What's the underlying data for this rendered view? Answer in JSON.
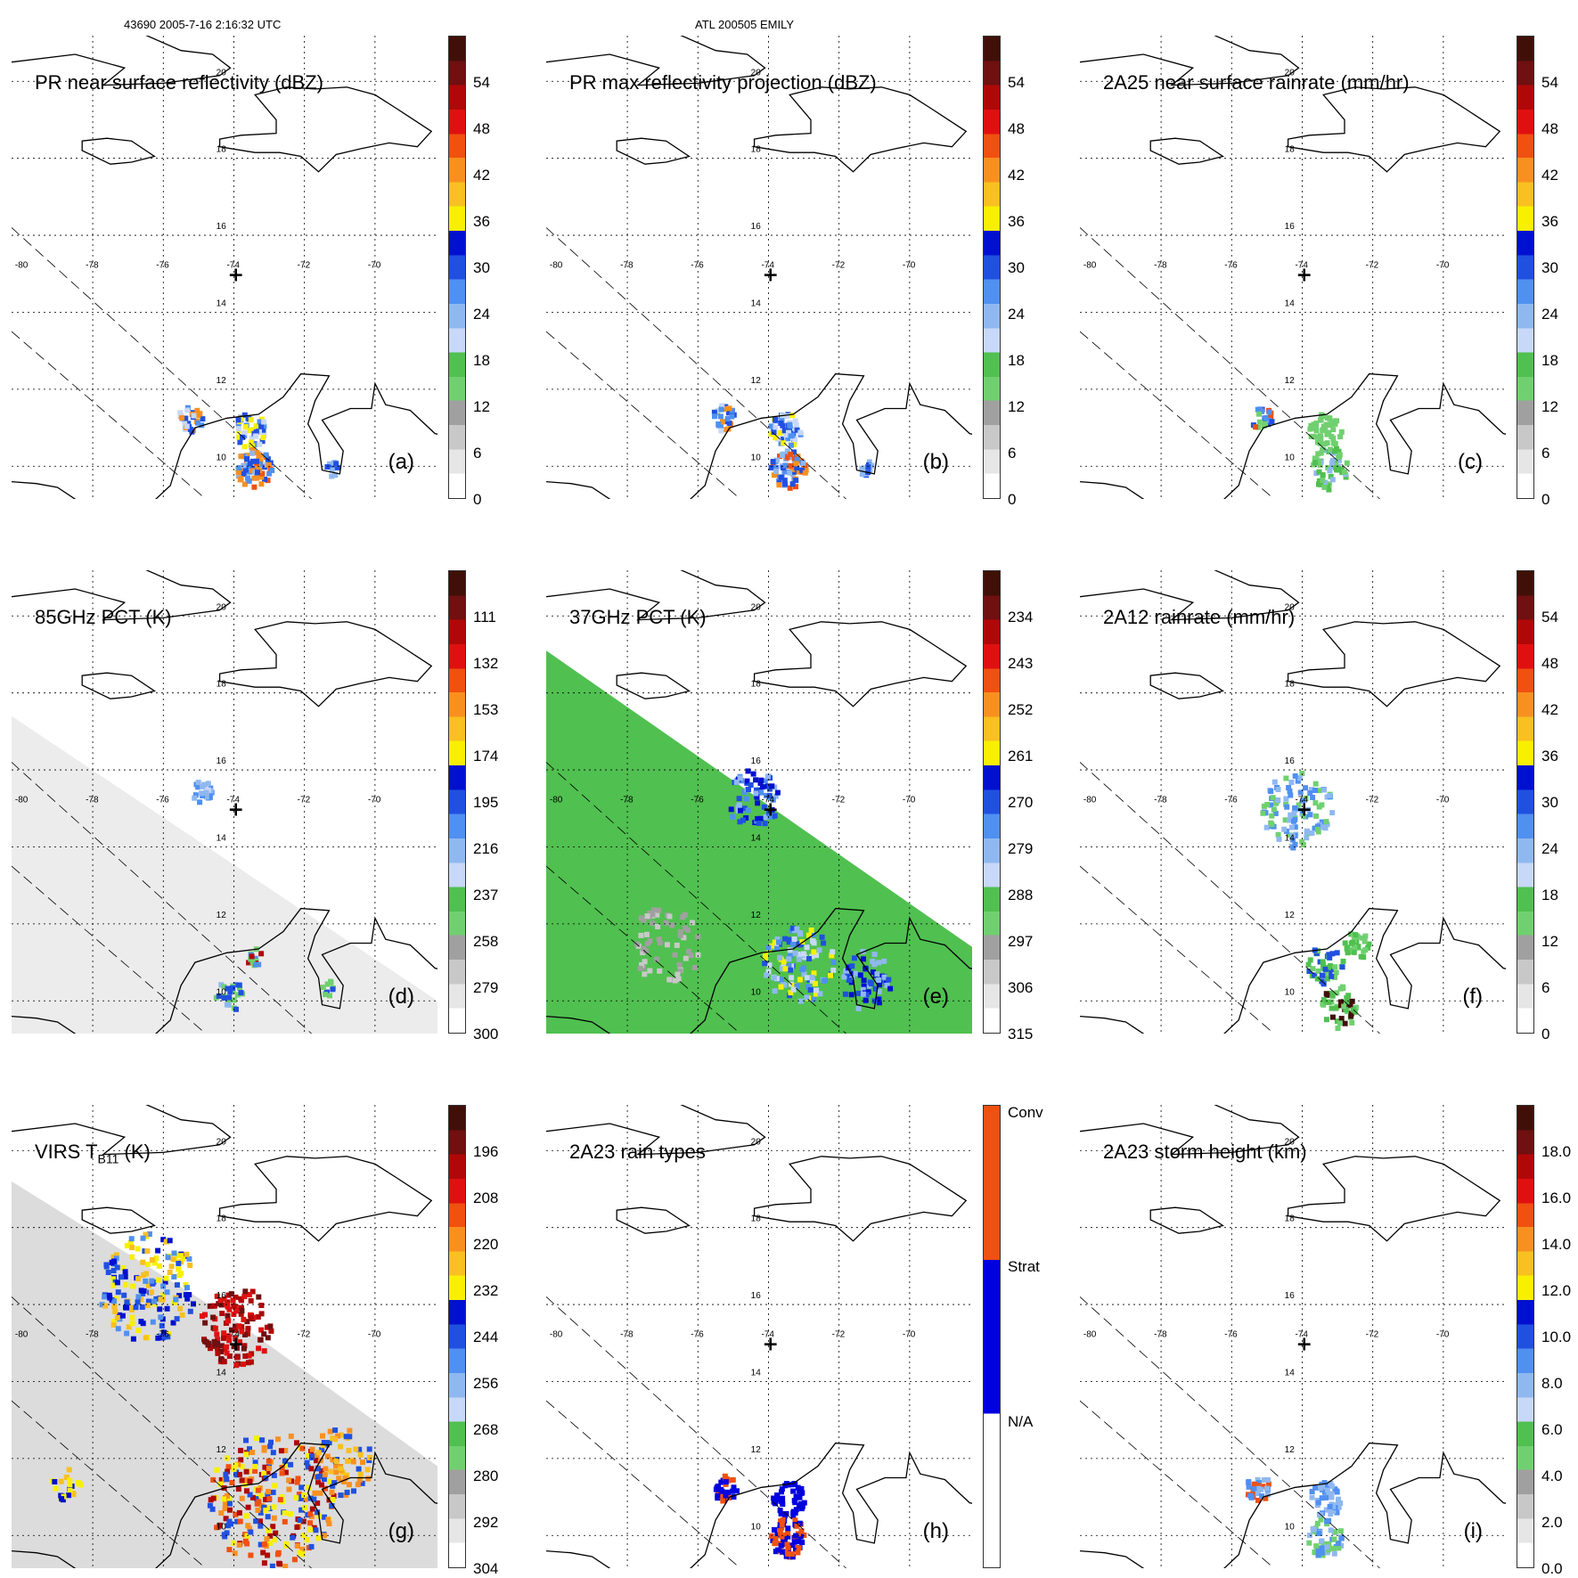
{
  "header": {
    "orbit_time": "43690 2005-7-16 2:16:32 UTC",
    "storm": "ATL 200505 EMILY"
  },
  "map": {
    "lon_labels": [
      "-80",
      "-78",
      "-76",
      "-74",
      "-72",
      "-70"
    ],
    "lat_labels": [
      "20",
      "18",
      "16",
      "14",
      "12",
      "10"
    ],
    "storm_center_marker": "+"
  },
  "panels": [
    {
      "id": "a",
      "title": "PR near surface reflectivity (dBZ)",
      "label": "(a)",
      "bg": "none",
      "ticks": [
        "54",
        "48",
        "42",
        "36",
        "30",
        "24",
        "18",
        "12",
        "6",
        "0"
      ]
    },
    {
      "id": "b",
      "title": "PR max reflectivity projection (dBZ)",
      "label": "(b)",
      "bg": "none",
      "ticks": [
        "54",
        "48",
        "42",
        "36",
        "30",
        "24",
        "18",
        "12",
        "6",
        "0"
      ]
    },
    {
      "id": "c",
      "title": "2A25 near surface rainrate (mm/hr)",
      "label": "(c)",
      "bg": "none",
      "ticks": [
        "54",
        "48",
        "42",
        "36",
        "30",
        "24",
        "18",
        "12",
        "6",
        "0"
      ]
    },
    {
      "id": "d",
      "title": "85GHz PCT (K)",
      "label": "(d)",
      "bg": "gray",
      "ticks": [
        "111",
        "132",
        "153",
        "174",
        "195",
        "216",
        "237",
        "258",
        "279",
        "300"
      ]
    },
    {
      "id": "e",
      "title": "37GHz PCT (K)",
      "label": "(e)",
      "bg": "green",
      "ticks": [
        "234",
        "243",
        "252",
        "261",
        "270",
        "279",
        "288",
        "297",
        "306",
        "315"
      ]
    },
    {
      "id": "f",
      "title": "2A12 rainrate (mm/hr)",
      "label": "(f)",
      "bg": "none",
      "ticks": [
        "54",
        "48",
        "42",
        "36",
        "30",
        "24",
        "18",
        "12",
        "6",
        "0"
      ]
    },
    {
      "id": "g",
      "title": "VIRS T",
      "title_sub": "B11",
      "title_tail": " (K)",
      "label": "(g)",
      "bg": "virs",
      "ticks": [
        "196",
        "208",
        "220",
        "232",
        "244",
        "256",
        "268",
        "280",
        "292",
        "304"
      ]
    },
    {
      "id": "h",
      "title": "2A23 rain types",
      "label": "(h)",
      "bg": "none",
      "ticks": [
        "Conv",
        "Strat",
        "N/A"
      ]
    },
    {
      "id": "i",
      "title": "2A23 storm height (km)",
      "label": "(i)",
      "bg": "none",
      "ticks": [
        "18.0",
        "16.0",
        "14.0",
        "12.0",
        "10.0",
        "8.0",
        "6.0",
        "4.0",
        "2.0",
        "0.0"
      ]
    }
  ],
  "colors": {
    "scale": [
      "#ffffff",
      "#e6e6e6",
      "#c8c8c8",
      "#a0a0a0",
      "#70d070",
      "#50c050",
      "#c8d8f8",
      "#90b8f0",
      "#5090f0",
      "#2050e0",
      "#0010d0",
      "#f8f000",
      "#f8c020",
      "#f89020",
      "#f05010",
      "#e01010",
      "#b00808",
      "#701010",
      "#401008"
    ],
    "rain_types": [
      "#ffffff",
      "#0000e0",
      "#f05010"
    ]
  }
}
